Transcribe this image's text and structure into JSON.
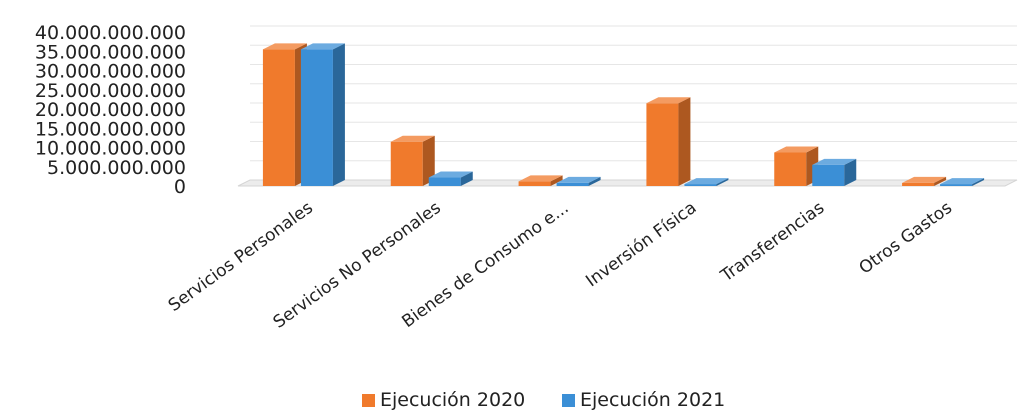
{
  "chart_data": {
    "type": "bar",
    "categories": [
      "Servicios Personales",
      "Servicios No Personales",
      "Bienes de Consumo e...",
      "Inversión Física",
      "Transferencias",
      "Otros Gastos"
    ],
    "series": [
      {
        "name": "Ejecución 2020",
        "color": "#F07A2C",
        "values": [
          35500000000,
          11500000000,
          1200000000,
          21500000000,
          8700000000,
          800000000
        ]
      },
      {
        "name": "Ejecución 2021",
        "color": "#3B8FD6",
        "values": [
          35500000000,
          2200000000,
          800000000,
          500000000,
          5500000000,
          500000000
        ]
      }
    ],
    "ylim": [
      0,
      40000000000
    ],
    "yticks": [
      "0",
      "5.000.000.000",
      "10.000.000.000",
      "15.000.000.000",
      "20.000.000.000",
      "25.000.000.000",
      "30.000.000.000",
      "35.000.000.000",
      "40.000.000.000"
    ],
    "grid": true,
    "legend": "bottom",
    "style": "3d-column"
  }
}
